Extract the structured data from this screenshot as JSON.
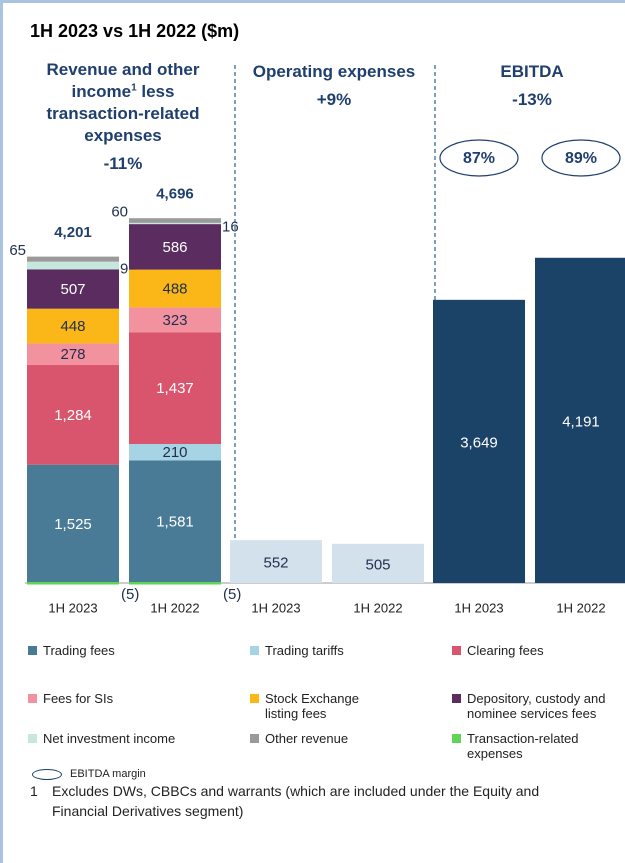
{
  "title": "1H 2023 vs 1H 2022 ($m)",
  "chart_data": [
    {
      "type": "stacked_bar",
      "title": "Revenue and other income",
      "title_sup": "1",
      "title_rest": "less transaction-related expenses",
      "change": "-11%",
      "categories": [
        "1H 2023",
        "1H 2022"
      ],
      "series": [
        {
          "name": "Trading fees",
          "color": "#4a7b96",
          "values": [
            1525,
            1581
          ],
          "value_labels": [
            "1,525",
            "1,581"
          ]
        },
        {
          "name": "Trading tariffs",
          "color": "#a6d4e4",
          "values": [
            null,
            210
          ]
        },
        {
          "name": "Clearing fees",
          "color": "#d9556d",
          "values": [
            1284,
            1437
          ],
          "value_labels": [
            "1,284",
            "1,437"
          ]
        },
        {
          "name": "Fees for SIs",
          "color": "#f3929f",
          "values": [
            278,
            323
          ]
        },
        {
          "name": "Stock Exchange listing fees",
          "color": "#fbb617",
          "values": [
            448,
            488
          ]
        },
        {
          "name": "Depository, custody and nominee services fees",
          "color": "#5b2c5f",
          "values": [
            507,
            586
          ]
        },
        {
          "name": "Net investment income",
          "color": "#c6e7dc",
          "values": [
            99,
            16
          ]
        },
        {
          "name": "Other revenue",
          "color": "#9a9a9a",
          "values": [
            65,
            60
          ]
        },
        {
          "name": "Transaction-related expenses",
          "color": "#5ed458",
          "values": [
            -5,
            -5
          ],
          "value_labels": [
            "(5)",
            "(5)"
          ]
        }
      ],
      "totals": [
        4201,
        4696
      ],
      "total_labels": [
        "4,201",
        "4,696"
      ],
      "ylim": [
        0,
        5000
      ]
    },
    {
      "type": "bar",
      "title": "Operating expenses",
      "change": "+9%",
      "categories": [
        "1H 2023",
        "1H 2022"
      ],
      "values": [
        552,
        505
      ],
      "color": "#d3e1ec",
      "ylim": [
        0,
        5000
      ]
    },
    {
      "type": "bar",
      "title": "EBITDA",
      "change": "-13%",
      "categories": [
        "1H 2023",
        "1H 2022"
      ],
      "values": [
        3649,
        4191
      ],
      "value_labels": [
        "3,649",
        "4,191"
      ],
      "color": "#1b4267",
      "margins": [
        87,
        89
      ],
      "margin_labels": [
        "87%",
        "89%"
      ],
      "margin_name": "EBITDA margin",
      "ylim": [
        0,
        5000
      ]
    }
  ],
  "footnote": {
    "marker": "1",
    "text": "Excludes DWs, CBBCs and warrants (which are included under the Equity and Financial Derivatives segment)"
  }
}
